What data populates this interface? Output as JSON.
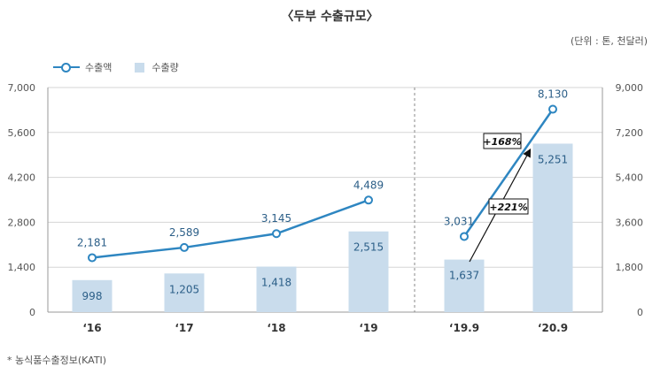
{
  "title": "〈두부 수출규모〉",
  "unit": "(단위 : 톤, 천달러)",
  "legend": {
    "line": "수출액",
    "bar": "수출량"
  },
  "source": "* 농식품수출정보(KATI)",
  "colors": {
    "line": "#2e86c1",
    "bar": "#c9dcec",
    "grid": "#d5d5d5",
    "axis": "#999999"
  },
  "chart_data": {
    "type": "bar",
    "categories": [
      "‘16",
      "‘17",
      "‘18",
      "‘19",
      "‘19.9",
      "‘20.9"
    ],
    "series": [
      {
        "name": "수출량",
        "type": "bar",
        "axis": "left",
        "values": [
          998,
          1205,
          1418,
          2515,
          1637,
          5251
        ],
        "labels": [
          "998",
          "1,205",
          "1,418",
          "2,515",
          "1,637",
          "5,251"
        ]
      },
      {
        "name": "수출액",
        "type": "line",
        "axis": "right",
        "values": [
          2181,
          2589,
          3145,
          4489,
          3031,
          8130
        ],
        "labels": [
          "2,181",
          "2,589",
          "3,145",
          "4,489",
          "3,031",
          "8,130"
        ]
      }
    ],
    "y_left": {
      "min": 0,
      "max": 7000,
      "ticks": [
        "0",
        "1,400",
        "2,800",
        "4,200",
        "5,600",
        "7,000"
      ]
    },
    "y_right": {
      "min": 0,
      "max": 9000,
      "ticks": [
        "0",
        "1,800",
        "3,600",
        "5,400",
        "7,200",
        "9,000"
      ]
    },
    "grid": true,
    "legend_position": "top-left",
    "annotations": [
      {
        "text": "+168%",
        "series": "수출액",
        "from": 4,
        "to": 5
      },
      {
        "text": "+221%",
        "series": "수출량",
        "from": 4,
        "to": 5
      }
    ]
  }
}
